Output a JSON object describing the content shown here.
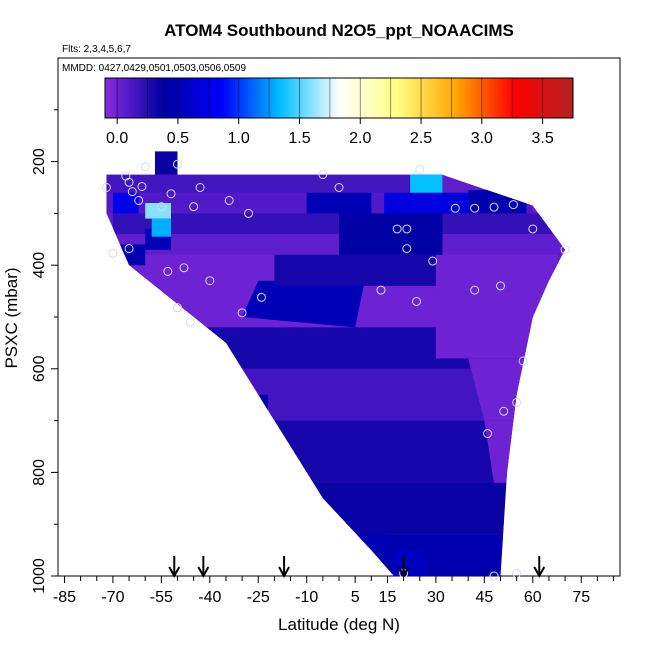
{
  "chart_data": {
    "type": "heatmap",
    "title": "ATOM4 Southbound N2O5_ppt_NOAACIMS",
    "flights_note": "Flts: 2,3,4,5,6,7",
    "dates_note": "MMDD: 0427,0429,0501,0503,0506,0509",
    "xlabel": "Latitude (deg N)",
    "ylabel": "PSXC (mbar)",
    "xlim": [
      -87,
      87
    ],
    "ylim": [
      1000,
      0
    ],
    "x_ticks": [
      "-85",
      "-70",
      "-55",
      "-40",
      "-25",
      "-10",
      "5",
      "15",
      "30",
      "45",
      "60",
      "75"
    ],
    "x_tick_values": [
      -85,
      -70,
      -55,
      -40,
      -25,
      -10,
      5,
      15,
      30,
      45,
      60,
      75
    ],
    "y_ticks": [
      "200",
      "400",
      "600",
      "800",
      "1000"
    ],
    "y_tick_values": [
      200,
      400,
      600,
      800,
      1000
    ],
    "colorbar": {
      "range": [
        -0.1,
        3.75
      ],
      "ticks": [
        "0.0",
        "0.5",
        "1.0",
        "1.5",
        "2.0",
        "2.5",
        "3.0",
        "3.5"
      ],
      "tick_values": [
        0.0,
        0.5,
        1.0,
        1.5,
        2.0,
        2.5,
        3.0,
        3.5
      ],
      "colors": [
        "#8a2be2",
        "#0000a0",
        "#0000ff",
        "#00bfff",
        "#ffffff",
        "#ffff80",
        "#ffa500",
        "#ff0000",
        "#b22222"
      ]
    },
    "field_outline": [
      [
        -72,
        225
      ],
      [
        32,
        225
      ],
      [
        60,
        285
      ],
      [
        70,
        370
      ],
      [
        65,
        430
      ],
      [
        60,
        500
      ],
      [
        55,
        650
      ],
      [
        52,
        800
      ],
      [
        50,
        1000
      ],
      [
        17,
        1000
      ],
      [
        10,
        950
      ],
      [
        -5,
        850
      ],
      [
        -15,
        750
      ],
      [
        -25,
        650
      ],
      [
        -35,
        550
      ],
      [
        -45,
        500
      ],
      [
        -55,
        450
      ],
      [
        -65,
        400
      ],
      [
        -72,
        300
      ]
    ],
    "field_top_bump": [
      [
        -57,
        180
      ],
      [
        -50,
        180
      ],
      [
        -50,
        225
      ],
      [
        -57,
        225
      ]
    ],
    "field_regions": [
      {
        "value": 0.15,
        "polygon": [
          [
            -72,
            225
          ],
          [
            32,
            225
          ],
          [
            32,
            260
          ],
          [
            -72,
            260
          ]
        ]
      },
      {
        "value": 0.35,
        "polygon": [
          [
            -57,
            180
          ],
          [
            -50,
            180
          ],
          [
            -50,
            225
          ],
          [
            -57,
            225
          ]
        ]
      },
      {
        "value": 0.1,
        "polygon": [
          [
            -72,
            260
          ],
          [
            60,
            260
          ],
          [
            60,
            300
          ],
          [
            -72,
            300
          ]
        ]
      },
      {
        "value": 0.2,
        "polygon": [
          [
            -70,
            300
          ],
          [
            68,
            300
          ],
          [
            68,
            340
          ],
          [
            -70,
            340
          ]
        ]
      },
      {
        "value": 0.05,
        "polygon": [
          [
            -70,
            340
          ],
          [
            70,
            340
          ],
          [
            70,
            380
          ],
          [
            -70,
            380
          ]
        ]
      },
      {
        "value": 0.0,
        "polygon": [
          [
            -66,
            380
          ],
          [
            68,
            380
          ],
          [
            66,
            450
          ],
          [
            -60,
            450
          ]
        ]
      },
      {
        "value": 0.0,
        "polygon": [
          [
            -55,
            450
          ],
          [
            65,
            450
          ],
          [
            60,
            520
          ],
          [
            -45,
            520
          ]
        ]
      },
      {
        "value": 0.3,
        "polygon": [
          [
            -45,
            520
          ],
          [
            60,
            520
          ],
          [
            57,
            600
          ],
          [
            -38,
            600
          ]
        ]
      },
      {
        "value": 0.15,
        "polygon": [
          [
            -38,
            600
          ],
          [
            57,
            600
          ],
          [
            55,
            700
          ],
          [
            -25,
            700
          ]
        ]
      },
      {
        "value": 0.3,
        "polygon": [
          [
            -25,
            700
          ],
          [
            55,
            700
          ],
          [
            53,
            820
          ],
          [
            -10,
            820
          ]
        ]
      },
      {
        "value": 0.35,
        "polygon": [
          [
            -10,
            820
          ],
          [
            53,
            820
          ],
          [
            51,
            920
          ],
          [
            5,
            920
          ]
        ]
      },
      {
        "value": 0.45,
        "polygon": [
          [
            5,
            920
          ],
          [
            51,
            920
          ],
          [
            50,
            1000
          ],
          [
            17,
            1000
          ]
        ]
      },
      {
        "value": 0.5,
        "polygon": [
          [
            -25,
            430
          ],
          [
            8,
            430
          ],
          [
            5,
            520
          ],
          [
            -30,
            500
          ]
        ]
      },
      {
        "value": 0.5,
        "polygon": [
          [
            -60,
            330
          ],
          [
            -52,
            330
          ],
          [
            -52,
            370
          ],
          [
            -60,
            370
          ]
        ]
      },
      {
        "value": 0.4,
        "polygon": [
          [
            22,
            330
          ],
          [
            32,
            330
          ],
          [
            32,
            365
          ],
          [
            22,
            365
          ]
        ]
      },
      {
        "value": 0.0,
        "polygon": [
          [
            30,
            380
          ],
          [
            68,
            380
          ],
          [
            66,
            450
          ],
          [
            30,
            450
          ]
        ]
      },
      {
        "value": 0.0,
        "polygon": [
          [
            30,
            450
          ],
          [
            65,
            450
          ],
          [
            60,
            580
          ],
          [
            30,
            580
          ]
        ]
      },
      {
        "value": 0.0,
        "polygon": [
          [
            40,
            580
          ],
          [
            58,
            580
          ],
          [
            55,
            700
          ],
          [
            45,
            700
          ]
        ]
      },
      {
        "value": 0.0,
        "polygon": [
          [
            45,
            700
          ],
          [
            55,
            700
          ],
          [
            53,
            820
          ],
          [
            48,
            820
          ]
        ]
      },
      {
        "value": 0.75,
        "polygon": [
          [
            -70,
            260
          ],
          [
            -62,
            260
          ],
          [
            -62,
            300
          ],
          [
            -70,
            300
          ]
        ]
      },
      {
        "value": 1.6,
        "polygon": [
          [
            -60,
            280
          ],
          [
            -52,
            280
          ],
          [
            -52,
            310
          ],
          [
            -60,
            310
          ]
        ]
      },
      {
        "value": 1.3,
        "polygon": [
          [
            -58,
            310
          ],
          [
            -52,
            310
          ],
          [
            -52,
            345
          ],
          [
            -58,
            345
          ]
        ]
      },
      {
        "value": 1.35,
        "polygon": [
          [
            22,
            225
          ],
          [
            32,
            225
          ],
          [
            32,
            270
          ],
          [
            22,
            270
          ]
        ]
      },
      {
        "value": 0.7,
        "polygon": [
          [
            14,
            260
          ],
          [
            40,
            260
          ],
          [
            40,
            300
          ],
          [
            14,
            300
          ]
        ]
      },
      {
        "value": 0.5,
        "polygon": [
          [
            -10,
            260
          ],
          [
            10,
            260
          ],
          [
            10,
            300
          ],
          [
            -10,
            300
          ]
        ]
      },
      {
        "value": 0.45,
        "polygon": [
          [
            -70,
            360
          ],
          [
            -60,
            360
          ],
          [
            -60,
            400
          ],
          [
            -70,
            400
          ]
        ]
      },
      {
        "value": 0.45,
        "polygon": [
          [
            40,
            255
          ],
          [
            58,
            255
          ],
          [
            58,
            300
          ],
          [
            40,
            300
          ]
        ]
      },
      {
        "value": 0.5,
        "polygon": [
          [
            -45,
            560
          ],
          [
            -38,
            560
          ],
          [
            -38,
            600
          ],
          [
            -45,
            600
          ]
        ]
      },
      {
        "value": 0.45,
        "polygon": [
          [
            -30,
            650
          ],
          [
            -22,
            650
          ],
          [
            -22,
            700
          ],
          [
            -30,
            700
          ]
        ]
      },
      {
        "value": 0.5,
        "polygon": [
          [
            5,
            920
          ],
          [
            15,
            920
          ],
          [
            15,
            960
          ],
          [
            5,
            960
          ]
        ]
      },
      {
        "value": 0.55,
        "polygon": [
          [
            17,
            950
          ],
          [
            27,
            950
          ],
          [
            27,
            1000
          ],
          [
            17,
            1000
          ]
        ]
      },
      {
        "value": 0.4,
        "polygon": [
          [
            0,
            300
          ],
          [
            32,
            300
          ],
          [
            32,
            380
          ],
          [
            0,
            380
          ]
        ]
      },
      {
        "value": 0.3,
        "polygon": [
          [
            -20,
            380
          ],
          [
            30,
            380
          ],
          [
            30,
            440
          ],
          [
            -20,
            440
          ]
        ]
      }
    ],
    "sample_points": [
      [
        -72,
        250
      ],
      [
        -66,
        228
      ],
      [
        -65,
        240
      ],
      [
        -64,
        258
      ],
      [
        -62,
        275
      ],
      [
        -61,
        248
      ],
      [
        -60,
        210
      ],
      [
        -55,
        287
      ],
      [
        -52,
        262
      ],
      [
        -50,
        205
      ],
      [
        -45,
        287
      ],
      [
        -43,
        250
      ],
      [
        -34,
        275
      ],
      [
        -28,
        300
      ],
      [
        -70,
        377
      ],
      [
        -65,
        368
      ],
      [
        -53,
        412
      ],
      [
        -48,
        405
      ],
      [
        -50,
        482
      ],
      [
        -46,
        510
      ],
      [
        -40,
        430
      ],
      [
        -30,
        492
      ],
      [
        -24,
        462
      ],
      [
        -5,
        225
      ],
      [
        0,
        250
      ],
      [
        13,
        448
      ],
      [
        18,
        330
      ],
      [
        21,
        330
      ],
      [
        21,
        368
      ],
      [
        24,
        470
      ],
      [
        25,
        215
      ],
      [
        29,
        392
      ],
      [
        36,
        290
      ],
      [
        42,
        290
      ],
      [
        42,
        448
      ],
      [
        48,
        288
      ],
      [
        50,
        440
      ],
      [
        54,
        283
      ],
      [
        55,
        665
      ],
      [
        57,
        585
      ],
      [
        60,
        330
      ],
      [
        70,
        370
      ],
      [
        46,
        725
      ],
      [
        51,
        682
      ],
      [
        48,
        1000
      ],
      [
        55,
        995
      ],
      [
        20,
        995
      ]
    ],
    "arrows_latitude": [
      -51,
      -42,
      -17,
      20,
      62
    ]
  }
}
